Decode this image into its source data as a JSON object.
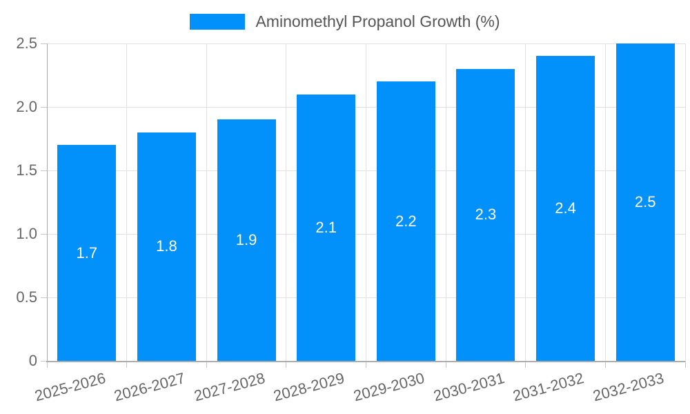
{
  "legend": {
    "label": "Aminomethyl Propanol Growth (%)"
  },
  "chart_data": {
    "type": "bar",
    "title": "Aminomethyl Propanol Growth (%)",
    "categories": [
      "2025-2026",
      "2026-2027",
      "2027-2028",
      "2028-2029",
      "2029-2030",
      "2030-2031",
      "2031-2032",
      "2032-2033"
    ],
    "values": [
      1.7,
      1.8,
      1.9,
      2.1,
      2.2,
      2.3,
      2.4,
      2.5
    ],
    "bar_value_labels": [
      "1.7",
      "1.8",
      "1.9",
      "2.1",
      "2.2",
      "2.3",
      "2.4",
      "2.5"
    ],
    "xlabel": "",
    "ylabel": "",
    "ylim": [
      0,
      2.5
    ],
    "yticks": [
      0,
      0.5,
      1.0,
      1.5,
      2.0,
      2.5
    ],
    "ytick_labels": [
      "0",
      "0.5",
      "1.0",
      "1.5",
      "2.0",
      "2.5"
    ],
    "grid": "both",
    "legend_position": "top-center",
    "colors": {
      "bar": "#0290FA",
      "grid": "#E1E1E1",
      "axis": "#ABABAB",
      "tick_mark": "#C6C6C6",
      "tick_text": "#666666",
      "legend_text": "#555555",
      "bar_label_text": "#FFFFFF",
      "background": "#FFFFFF"
    }
  }
}
